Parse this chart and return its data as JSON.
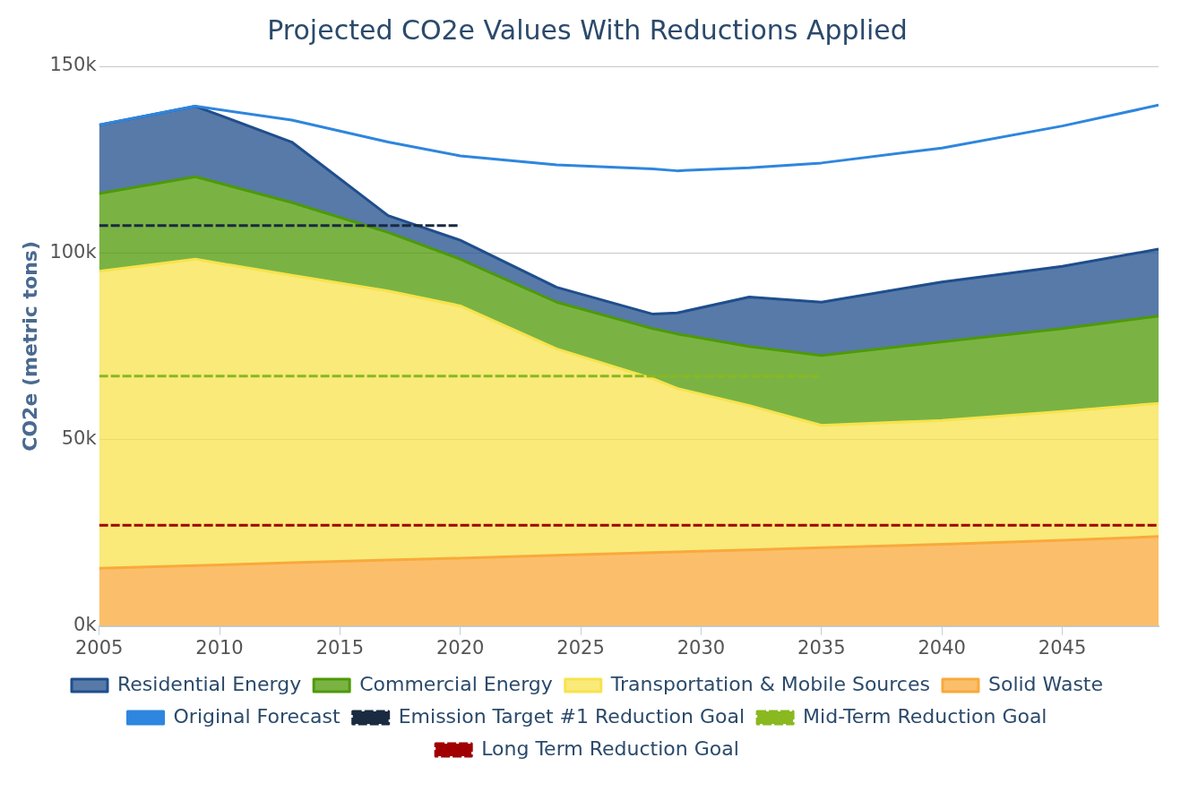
{
  "chart_data": {
    "type": "area",
    "title": "Projected CO2e Values With Reductions Applied",
    "ylabel": "CO2e (metric tons)",
    "x": [
      2005,
      2009,
      2013,
      2017,
      2020,
      2024,
      2028,
      2029,
      2032,
      2035,
      2040,
      2045,
      2049
    ],
    "stacked": true,
    "series": [
      {
        "name": "Solid Waste",
        "color": "#f9a93b",
        "values": [
          15.5,
          16.2,
          17,
          17.7,
          18.2,
          19,
          19.7,
          19.9,
          20.4,
          21,
          21.9,
          23,
          24
        ]
      },
      {
        "name": "Transportation & Mobile Sources",
        "color": "#f7e34d",
        "values": [
          79.6,
          82.1,
          77,
          72.1,
          67.6,
          55.3,
          46.6,
          43.8,
          38.7,
          32.8,
          33.2,
          34.5,
          35.7
        ]
      },
      {
        "name": "Commercial Energy",
        "color": "#4e9a06",
        "values": [
          20.8,
          22.1,
          19.5,
          15.7,
          12.5,
          12.5,
          13.4,
          14.6,
          15.8,
          18.7,
          21.1,
          22.2,
          23.4
        ]
      },
      {
        "name": "Residential Energy",
        "color": "#1f4e8c",
        "values": [
          18.4,
          18.9,
          16.2,
          4.5,
          5.1,
          4,
          3.9,
          5.6,
          13.3,
          14.3,
          16,
          16.7,
          17.9
        ]
      },
      {
        "name": "Original Forecast",
        "type": "line",
        "color": "#2e86de",
        "values": [
          134.3,
          139.3,
          135.6,
          129.7,
          126,
          123.6,
          122.5,
          122,
          122.8,
          124.1,
          128.1,
          134,
          139.6
        ]
      },
      {
        "name": "Emission Target #1 Reduction Goal",
        "type": "line",
        "line_style": "dashed",
        "color": "#1a2a40",
        "x": [
          2005,
          2020
        ],
        "values": [
          107.3,
          107.3
        ]
      },
      {
        "name": "Mid-Term Reduction Goal",
        "type": "line",
        "line_style": "dashed",
        "color": "#8ab820",
        "x": [
          2005,
          2035
        ],
        "values": [
          67,
          67
        ]
      },
      {
        "name": "Long Term Reduction Goal",
        "type": "line",
        "line_style": "dashed",
        "color": "#a00000",
        "x": [
          2005,
          2049
        ],
        "values": [
          27,
          27
        ]
      }
    ],
    "xlim": [
      2005,
      2049
    ],
    "xticks": [
      2005,
      2010,
      2015,
      2020,
      2025,
      2030,
      2035,
      2040,
      2045
    ],
    "ylim": [
      0,
      150
    ],
    "yticks": [
      {
        "value": 0,
        "label": "0k"
      },
      {
        "value": 50,
        "label": "50k"
      },
      {
        "value": 100,
        "label": "100k"
      },
      {
        "value": 150,
        "label": "150k"
      }
    ],
    "grid": "y",
    "legend": "bottom",
    "marker": "none"
  }
}
